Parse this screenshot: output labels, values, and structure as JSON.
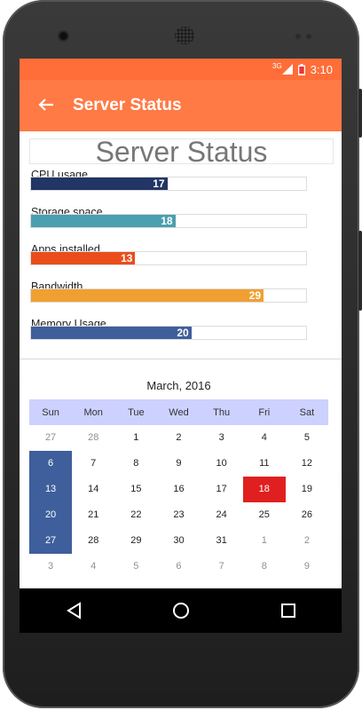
{
  "status_bar": {
    "network": "3G",
    "time": "3:10"
  },
  "app_bar": {
    "title": "Server Status",
    "back_icon": "arrow-back-icon"
  },
  "header_title": "Server Status",
  "bars": [
    {
      "label": "CPU usage",
      "value": 17,
      "color": "#223564"
    },
    {
      "label": "Storage space",
      "value": 18,
      "color": "#4b9fb0"
    },
    {
      "label": "Apps installed",
      "value": 13,
      "color": "#ea4d1b"
    },
    {
      "label": "Bandwidth",
      "value": 29,
      "color": "#f0a030"
    },
    {
      "label": "Memory Usage",
      "value": 20,
      "color": "#3f5e9c"
    }
  ],
  "calendar": {
    "title": "March, 2016",
    "weekdays": [
      "Sun",
      "Mon",
      "Tue",
      "Wed",
      "Thu",
      "Fri",
      "Sat"
    ],
    "weeks": [
      [
        "27",
        "28",
        "1",
        "2",
        "3",
        "4",
        "5"
      ],
      [
        "6",
        "7",
        "8",
        "9",
        "10",
        "11",
        "12"
      ],
      [
        "13",
        "14",
        "15",
        "16",
        "17",
        "18",
        "19"
      ],
      [
        "20",
        "21",
        "22",
        "23",
        "24",
        "25",
        "26"
      ],
      [
        "27",
        "28",
        "29",
        "30",
        "31",
        "1",
        "2"
      ],
      [
        "3",
        "4",
        "5",
        "6",
        "7",
        "8",
        "9"
      ]
    ]
  },
  "nav_bar": {
    "back": "triangle-back-icon",
    "home": "circle-home-icon",
    "recents": "square-recents-icon"
  }
}
